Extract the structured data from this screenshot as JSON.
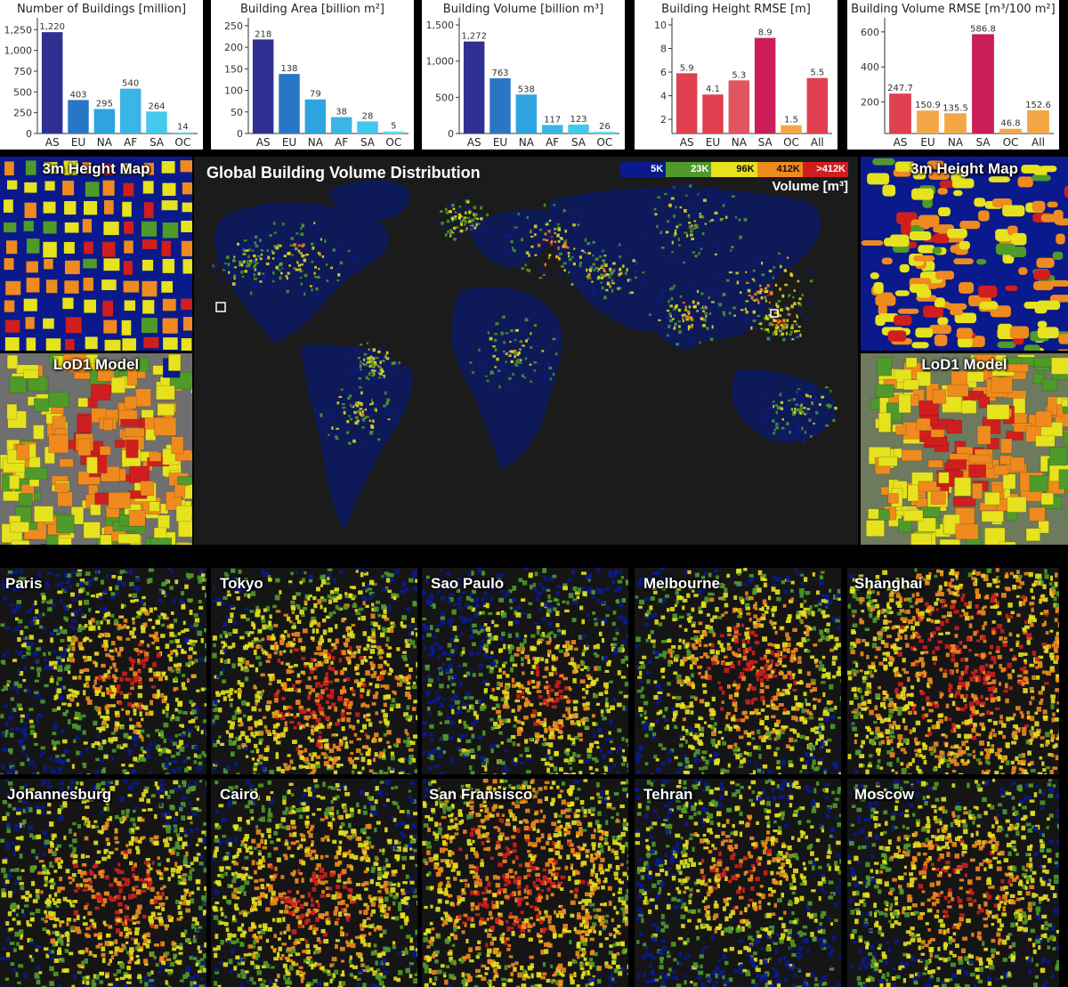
{
  "chart_data": [
    {
      "type": "bar",
      "title": "Number of Buildings [million]",
      "categories": [
        "AS",
        "EU",
        "NA",
        "AF",
        "SA",
        "OC"
      ],
      "values": [
        1220,
        403,
        295,
        540,
        264,
        14
      ],
      "value_labels": [
        "1,220",
        "403",
        "295",
        "540",
        "264",
        "14"
      ],
      "colors": [
        "#2e3192",
        "#2a76c6",
        "#2fa3e0",
        "#3bb4e6",
        "#44c8ec",
        "#62e4f4"
      ],
      "ylim": [
        0,
        1350
      ],
      "yticks": [
        0,
        250,
        500,
        750,
        1000,
        1250
      ],
      "ytick_labels": [
        "0",
        "250",
        "500",
        "750",
        "1,000",
        "1,250"
      ]
    },
    {
      "type": "bar",
      "title": "Building Area [billion m²]",
      "categories": [
        "AS",
        "EU",
        "NA",
        "AF",
        "SA",
        "OC"
      ],
      "values": [
        218,
        138,
        79,
        38,
        28,
        5
      ],
      "value_labels": [
        "218",
        "138",
        "79",
        "38",
        "28",
        "5"
      ],
      "colors": [
        "#2e3192",
        "#2a76c6",
        "#2fa3e0",
        "#3bb4e6",
        "#44c8ec",
        "#62e4f4"
      ],
      "ylim": [
        0,
        260
      ],
      "yticks": [
        0,
        50,
        100,
        150,
        200,
        250
      ],
      "ytick_labels": [
        "0",
        "50",
        "100",
        "150",
        "200",
        "250"
      ]
    },
    {
      "type": "bar",
      "title": "Building Volume [billion m³]",
      "categories": [
        "AS",
        "EU",
        "NA",
        "AF",
        "SA",
        "OC"
      ],
      "values": [
        1272,
        763,
        538,
        117,
        123,
        26
      ],
      "value_labels": [
        "1,272",
        "763",
        "538",
        "117",
        "123",
        "26"
      ],
      "colors": [
        "#2e3192",
        "#2a76c6",
        "#2fa3e0",
        "#3bb4e6",
        "#44c8ec",
        "#62e4f4"
      ],
      "ylim": [
        0,
        1550
      ],
      "yticks": [
        0,
        500,
        1000,
        1500
      ],
      "ytick_labels": [
        "0",
        "500",
        "1,000",
        "1,500"
      ]
    },
    {
      "type": "bar",
      "title": "Building Height RMSE [m]",
      "categories": [
        "AS",
        "EU",
        "NA",
        "SA",
        "OC",
        "All"
      ],
      "values": [
        5.9,
        4.1,
        5.3,
        8.9,
        1.5,
        5.5
      ],
      "value_labels": [
        "5.9",
        "4.1",
        "5.3",
        "8.9",
        "1.5",
        "5.5"
      ],
      "colors": [
        "#e0404f",
        "#e0404f",
        "#e05560",
        "#cc1f58",
        "#f4a747",
        "#e0404f"
      ],
      "ylim": [
        0.8,
        10.3
      ],
      "yticks": [
        2,
        4,
        6,
        8,
        10
      ],
      "ytick_labels": [
        "2",
        "4",
        "6",
        "8",
        "10"
      ]
    },
    {
      "type": "bar",
      "title": "Building Volume RMSE [m³/100 m²]",
      "categories": [
        "AS",
        "EU",
        "NA",
        "SA",
        "OC",
        "All"
      ],
      "values": [
        247.7,
        150.9,
        135.5,
        586.8,
        46.8,
        152.6
      ],
      "value_labels": [
        "247.7",
        "150.9",
        "135.5",
        "586.8",
        "46.8",
        "152.6"
      ],
      "colors": [
        "#e0404f",
        "#f4a747",
        "#f4a747",
        "#cc1f58",
        "#f4a747",
        "#f4a747"
      ],
      "ylim": [
        20,
        660
      ],
      "yticks": [
        200,
        400,
        600
      ],
      "ytick_labels": [
        "200",
        "400",
        "600"
      ]
    }
  ],
  "map": {
    "title": "Global Building Volume Distribution",
    "legend_labels": [
      "5K",
      "23K",
      "96K",
      "412K",
      ">412K"
    ],
    "legend_colors": [
      "#0a1a8c",
      "#4f9a2a",
      "#e6e21e",
      "#ef8a1e",
      "#d01e1e"
    ],
    "legend_title": "Volume [m³]"
  },
  "insets": {
    "height_map_label": "3m Height Map",
    "lod1_label": "LoD1 Model"
  },
  "cities": [
    "Paris",
    "Tokyo",
    "Sao Paulo",
    "Melbourne",
    "Shanghai",
    "Johannesburg",
    "Cairo",
    "San Fransisco",
    "Tehran",
    "Moscow"
  ]
}
